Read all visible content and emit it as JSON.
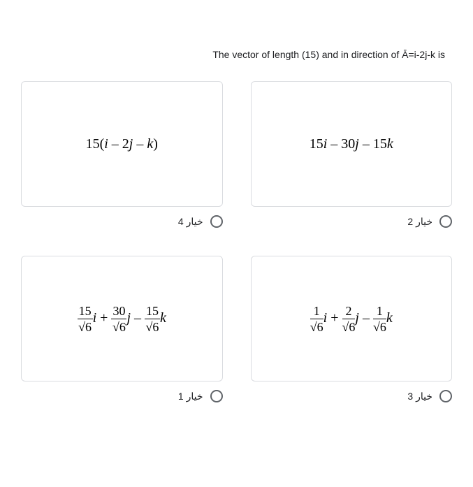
{
  "question_text": "The vector of length (15) and in direction of Ā=i-2j-k is",
  "options": {
    "top_left": {
      "label": "خيار 4",
      "math_type": "plain",
      "plain": "15(i – 2j – k)"
    },
    "top_right": {
      "label": "خيار 2",
      "math_type": "plain",
      "plain": "15i – 30j – 15k"
    },
    "bottom_left": {
      "label": "خيار 1",
      "math_type": "frac",
      "terms": [
        {
          "num": "15",
          "den": "6",
          "var": "i",
          "op": ""
        },
        {
          "num": "30",
          "den": "6",
          "var": "j",
          "op": "+"
        },
        {
          "num": "15",
          "den": "6",
          "var": "k",
          "op": "–"
        }
      ]
    },
    "bottom_right": {
      "label": "خيار 3",
      "math_type": "frac",
      "terms": [
        {
          "num": "1",
          "den": "6",
          "var": "i",
          "op": ""
        },
        {
          "num": "2",
          "den": "6",
          "var": "j",
          "op": "+"
        },
        {
          "num": "1",
          "den": "6",
          "var": "k",
          "op": "–"
        }
      ]
    }
  },
  "styling": {
    "card_border_color": "#dadce0",
    "text_color": "#202124",
    "radio_border_color": "#5f6368",
    "background": "#ffffff",
    "math_font": "Times New Roman",
    "math_fontsize": 20,
    "label_fontsize": 14
  }
}
